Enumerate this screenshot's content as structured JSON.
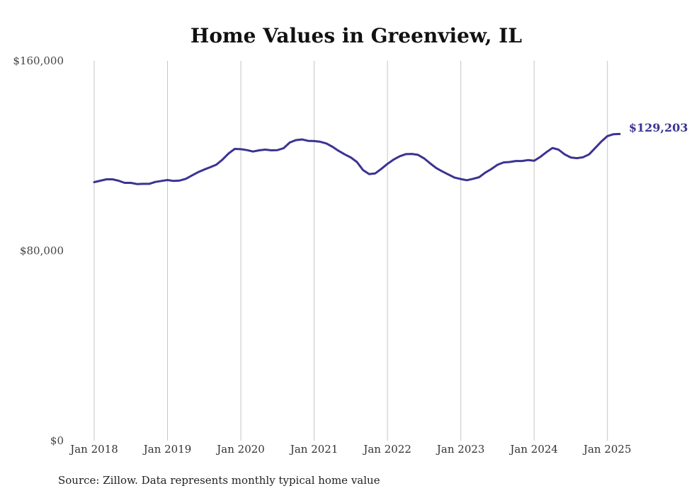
{
  "chart_data": {
    "type": "line",
    "title": "Home Values in Greenview, IL",
    "source": "Source: Zillow. Data represents monthly typical home value",
    "y_ticks": [
      "$160,000",
      "$80,000",
      "$0"
    ],
    "y_tick_values": [
      160000,
      80000,
      0
    ],
    "ylim": [
      0,
      160000
    ],
    "x_ticks": [
      "Jan 2018",
      "Jan 2019",
      "Jan 2020",
      "Jan 2021",
      "Jan 2022",
      "Jan 2023",
      "Jan 2024",
      "Jan 2025"
    ],
    "x_tick_values": [
      "2018-01",
      "2019-01",
      "2020-01",
      "2021-01",
      "2022-01",
      "2023-01",
      "2024-01",
      "2025-01"
    ],
    "xlim": [
      "2018-01",
      "2025-03"
    ],
    "grid": "vertical",
    "line_color": "#3b3391",
    "end_label": "$129,203",
    "series": [
      {
        "x": [
          "2018-01",
          "2018-02",
          "2018-03",
          "2018-04",
          "2018-05",
          "2018-06",
          "2018-07",
          "2018-08",
          "2018-09",
          "2018-10",
          "2018-11",
          "2018-12",
          "2019-01",
          "2019-02",
          "2019-03",
          "2019-04",
          "2019-05",
          "2019-06",
          "2019-07",
          "2019-08",
          "2019-09",
          "2019-10",
          "2019-11",
          "2019-12",
          "2020-01",
          "2020-02",
          "2020-03",
          "2020-04",
          "2020-05",
          "2020-06",
          "2020-07",
          "2020-08",
          "2020-09",
          "2020-10",
          "2020-11",
          "2020-12",
          "2021-01",
          "2021-02",
          "2021-03",
          "2021-04",
          "2021-05",
          "2021-06",
          "2021-07",
          "2021-08",
          "2021-09",
          "2021-10",
          "2021-11",
          "2021-12",
          "2022-01",
          "2022-02",
          "2022-03",
          "2022-04",
          "2022-05",
          "2022-06",
          "2022-07",
          "2022-08",
          "2022-09",
          "2022-10",
          "2022-11",
          "2022-12",
          "2023-01",
          "2023-02",
          "2023-03",
          "2023-04",
          "2023-05",
          "2023-06",
          "2023-07",
          "2023-08",
          "2023-09",
          "2023-10",
          "2023-11",
          "2023-12",
          "2024-01",
          "2024-02",
          "2024-03",
          "2024-04",
          "2024-05",
          "2024-06",
          "2024-07",
          "2024-08",
          "2024-09",
          "2024-10",
          "2024-11",
          "2024-12",
          "2025-01",
          "2025-02",
          "2025-03"
        ],
        "values": [
          108900,
          109500,
          110100,
          110100,
          109500,
          108600,
          108600,
          108100,
          108200,
          108200,
          109000,
          109400,
          109800,
          109400,
          109600,
          110300,
          111700,
          113100,
          114200,
          115200,
          116300,
          118400,
          121000,
          122900,
          122800,
          122400,
          121800,
          122300,
          122600,
          122300,
          122400,
          123200,
          125600,
          126600,
          126900,
          126300,
          126200,
          125900,
          125200,
          123800,
          122100,
          120600,
          119300,
          117400,
          114000,
          112300,
          112600,
          114500,
          116600,
          118400,
          119800,
          120700,
          120800,
          120400,
          118900,
          116800,
          114800,
          113400,
          112100,
          110800,
          110200,
          109700,
          110300,
          111000,
          112900,
          114400,
          116200,
          117200,
          117400,
          117800,
          117800,
          118200,
          117900,
          119500,
          121500,
          123300,
          122600,
          120600,
          119300,
          119000,
          119400,
          120600,
          123300,
          126000,
          128300,
          129100,
          129203
        ]
      }
    ]
  }
}
